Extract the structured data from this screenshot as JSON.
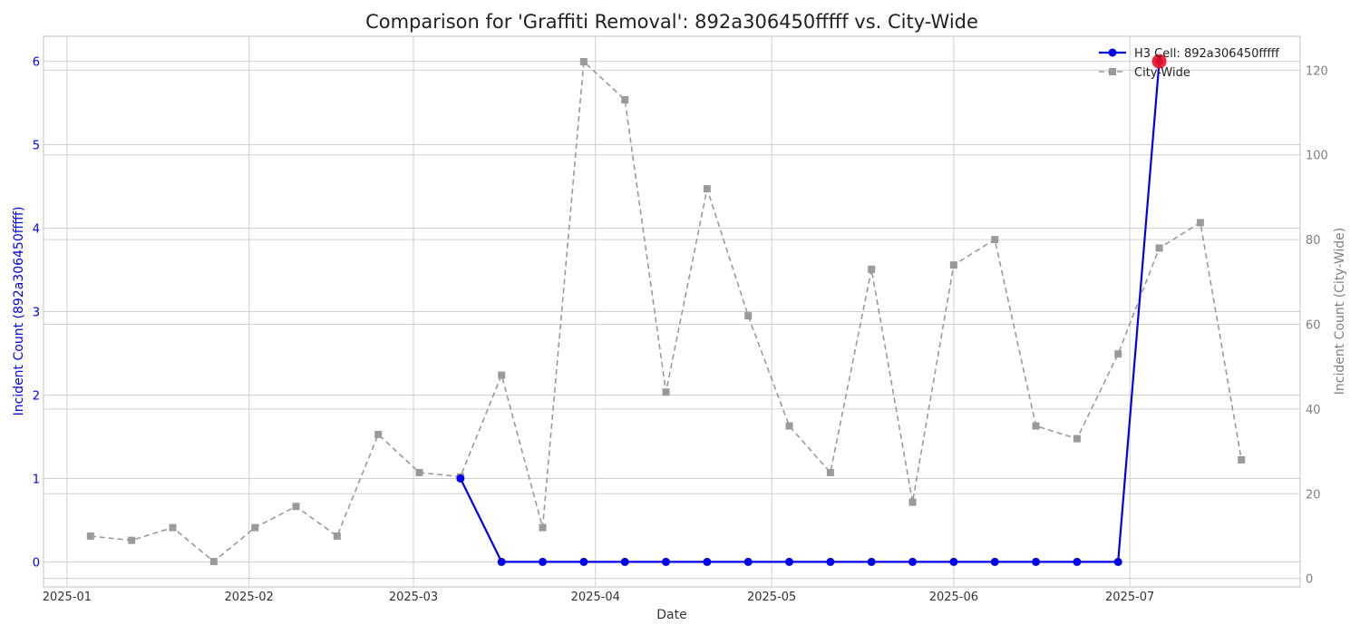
{
  "chart_data": {
    "type": "line",
    "title": "Comparison for 'Graffiti Removal': 892a306450fffff vs. City-Wide",
    "xlabel": "Date",
    "ylabel_left": "Incident Count (892a306450fffff)",
    "ylabel_right": "Incident Count (City-Wide)",
    "x_ticks": [
      "2025-01",
      "2025-02",
      "2025-03",
      "2025-04",
      "2025-05",
      "2025-06",
      "2025-07"
    ],
    "y_left_ticks": [
      0,
      1,
      2,
      3,
      4,
      5,
      6
    ],
    "y_right_ticks": [
      0,
      20,
      40,
      60,
      80,
      100,
      120
    ],
    "y_left_lim": [
      -0.3,
      6.3
    ],
    "y_right_lim": [
      -2,
      128
    ],
    "x_lim": [
      "2024-12-28",
      "2025-07-30"
    ],
    "grid": true,
    "legend_position": "top-right",
    "series": [
      {
        "name": "H3 Cell: 892a306450fffff",
        "axis": "left",
        "color": "#0000ee",
        "marker": "circle",
        "line_style": "solid",
        "x": [
          "2025-03-09",
          "2025-03-16",
          "2025-03-23",
          "2025-03-30",
          "2025-04-06",
          "2025-04-13",
          "2025-04-20",
          "2025-04-27",
          "2025-05-04",
          "2025-05-11",
          "2025-05-18",
          "2025-05-25",
          "2025-06-01",
          "2025-06-08",
          "2025-06-15",
          "2025-06-22",
          "2025-06-29",
          "2025-07-06"
        ],
        "values": [
          1,
          0,
          0,
          0,
          0,
          0,
          0,
          0,
          0,
          0,
          0,
          0,
          0,
          0,
          0,
          0,
          0,
          6
        ]
      },
      {
        "name": "City-Wide",
        "axis": "right",
        "color": "#9a9a9a",
        "marker": "square",
        "line_style": "dashed",
        "x": [
          "2025-01-05",
          "2025-01-12",
          "2025-01-19",
          "2025-01-26",
          "2025-02-02",
          "2025-02-09",
          "2025-02-16",
          "2025-02-23",
          "2025-03-02",
          "2025-03-09",
          "2025-03-16",
          "2025-03-23",
          "2025-03-30",
          "2025-04-06",
          "2025-04-13",
          "2025-04-20",
          "2025-04-27",
          "2025-05-04",
          "2025-05-11",
          "2025-05-18",
          "2025-05-25",
          "2025-06-01",
          "2025-06-08",
          "2025-06-15",
          "2025-06-22",
          "2025-06-29",
          "2025-07-06",
          "2025-07-13",
          "2025-07-20"
        ],
        "values": [
          10,
          9,
          12,
          4,
          12,
          17,
          10,
          34,
          25,
          24,
          48,
          12,
          122,
          113,
          44,
          92,
          62,
          36,
          25,
          73,
          18,
          74,
          80,
          36,
          33,
          53,
          78,
          84,
          28
        ]
      }
    ],
    "highlight": {
      "series": 0,
      "x": "2025-07-06",
      "value": 6,
      "color": "#ee1122"
    }
  }
}
